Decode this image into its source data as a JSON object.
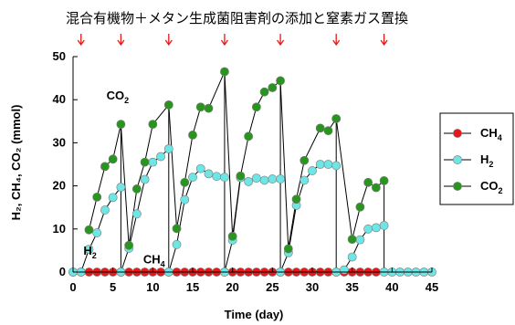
{
  "chart_data": {
    "type": "scatter",
    "title": "混合有機物＋メタン生成菌阻害剤の添加と窒素ガス置換",
    "xlabel": "Time (day)",
    "ylabel": "H₂, CH₄, CO₂ (mmol)",
    "xlim": [
      0,
      45
    ],
    "ylim": [
      0,
      50
    ],
    "x_ticks": [
      0,
      5,
      10,
      15,
      20,
      25,
      30,
      35,
      40,
      45
    ],
    "y_ticks": [
      0,
      10,
      20,
      30,
      40,
      50
    ],
    "grid": false,
    "legend_position": "right",
    "event_days": [
      1,
      6,
      12,
      19,
      26,
      33,
      39
    ],
    "annotations": [
      {
        "text": "CO",
        "sub": "2",
        "x": 4.2,
        "y": 40
      },
      {
        "text": "H",
        "sub": "2",
        "x": 1.3,
        "y": 4
      },
      {
        "text": "CH",
        "sub": "4",
        "x": 8.8,
        "y": 2
      }
    ],
    "segments": [
      [
        0,
        6
      ],
      [
        6,
        12
      ],
      [
        12,
        19
      ],
      [
        19,
        26
      ],
      [
        26,
        33
      ],
      [
        33,
        39
      ],
      [
        39,
        45
      ]
    ],
    "series": [
      {
        "name": "CH4",
        "name_main": "CH",
        "name_sub": "4",
        "color": "#e81818",
        "points": [
          [
            0,
            0
          ],
          [
            1,
            0
          ],
          [
            2,
            0
          ],
          [
            3,
            0
          ],
          [
            4,
            0
          ],
          [
            5,
            0
          ],
          [
            6,
            0
          ],
          [
            7,
            0
          ],
          [
            8,
            0
          ],
          [
            9,
            0
          ],
          [
            10,
            0
          ],
          [
            11,
            0
          ],
          [
            12,
            0
          ],
          [
            13,
            0
          ],
          [
            14,
            0
          ],
          [
            15,
            0
          ],
          [
            16,
            0
          ],
          [
            17,
            0
          ],
          [
            18,
            0
          ],
          [
            19,
            0
          ],
          [
            20,
            0
          ],
          [
            21,
            0
          ],
          [
            22,
            0
          ],
          [
            23,
            0
          ],
          [
            24,
            0
          ],
          [
            25,
            0
          ],
          [
            26,
            0
          ],
          [
            27,
            0
          ],
          [
            28,
            0
          ],
          [
            29,
            0
          ],
          [
            30,
            0
          ],
          [
            31,
            0
          ],
          [
            32,
            0
          ],
          [
            33,
            0
          ],
          [
            34,
            0
          ],
          [
            35,
            0
          ],
          [
            36,
            0
          ],
          [
            37,
            0
          ],
          [
            38,
            0
          ]
        ]
      },
      {
        "name": "H2",
        "name_main": "H",
        "name_sub": "2",
        "color": "#6ee6e6",
        "points": [
          [
            0,
            0
          ],
          [
            1,
            0
          ],
          [
            2,
            5.3
          ],
          [
            3,
            9.1
          ],
          [
            4,
            14.4
          ],
          [
            5,
            17.3
          ],
          [
            6,
            19.7
          ],
          [
            6,
            0
          ],
          [
            7,
            5.5
          ],
          [
            8,
            13.5
          ],
          [
            9,
            21.5
          ],
          [
            10,
            25.5
          ],
          [
            11,
            26.8
          ],
          [
            12,
            28.6
          ],
          [
            12,
            0
          ],
          [
            13,
            6.4
          ],
          [
            14,
            16.8
          ],
          [
            15,
            22
          ],
          [
            16,
            24
          ],
          [
            17,
            22.8
          ],
          [
            18,
            22.2
          ],
          [
            19,
            22
          ],
          [
            19,
            0
          ],
          [
            20,
            7.4
          ],
          [
            21,
            21.9
          ],
          [
            22,
            21
          ],
          [
            23,
            21.8
          ],
          [
            24,
            21.3
          ],
          [
            25,
            21.6
          ],
          [
            26,
            21.6
          ],
          [
            26,
            0
          ],
          [
            27,
            4.5
          ],
          [
            28,
            15.5
          ],
          [
            29,
            21.3
          ],
          [
            30,
            23.5
          ],
          [
            31,
            25
          ],
          [
            32,
            25
          ],
          [
            33,
            24.7
          ],
          [
            33,
            0
          ],
          [
            34,
            0.5
          ],
          [
            35,
            3.5
          ],
          [
            36,
            7.5
          ],
          [
            37,
            10
          ],
          [
            38,
            10.3
          ],
          [
            39,
            10.8
          ],
          [
            39,
            0
          ],
          [
            40,
            0
          ],
          [
            41,
            0
          ],
          [
            42,
            0
          ],
          [
            43,
            0
          ],
          [
            44,
            0
          ],
          [
            45,
            0
          ]
        ]
      },
      {
        "name": "CO2",
        "name_main": "CO",
        "name_sub": "2",
        "color": "#28961e",
        "points": [
          [
            2,
            9.8
          ],
          [
            3,
            17.4
          ],
          [
            4,
            24.5
          ],
          [
            5,
            26.2
          ],
          [
            6,
            34.3
          ],
          [
            7,
            6.2
          ],
          [
            8,
            19.3
          ],
          [
            9,
            25.5
          ],
          [
            10,
            34.3
          ],
          [
            12,
            38.8
          ],
          [
            13,
            10.1
          ],
          [
            14,
            20.8
          ],
          [
            15,
            31.8
          ],
          [
            16,
            38.3
          ],
          [
            17,
            38
          ],
          [
            19,
            46.5
          ],
          [
            20,
            8.3
          ],
          [
            21,
            22.3
          ],
          [
            22,
            31.5
          ],
          [
            23,
            38.3
          ],
          [
            24,
            41.8
          ],
          [
            25,
            42.8
          ],
          [
            26,
            44.4
          ],
          [
            27,
            5.4
          ],
          [
            28,
            16.9
          ],
          [
            29,
            25.9
          ],
          [
            31,
            33.4
          ],
          [
            32,
            32.8
          ],
          [
            33,
            35.6
          ],
          [
            35,
            7.6
          ],
          [
            36,
            15.1
          ],
          [
            37,
            20.8
          ],
          [
            38,
            19.6
          ],
          [
            39,
            21.2
          ]
        ]
      }
    ]
  }
}
